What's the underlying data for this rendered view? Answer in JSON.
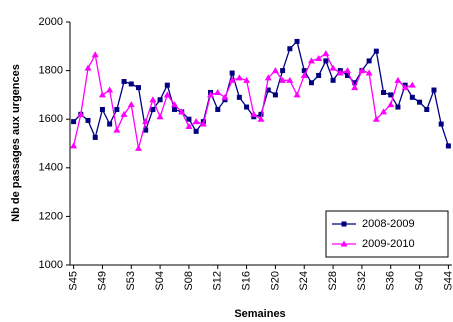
{
  "chart_data": {
    "type": "line",
    "ylabel": "Nb de passages aux urgences",
    "xlabel": "Semaines",
    "categories": [
      "S45",
      null,
      null,
      null,
      "S49",
      null,
      null,
      null,
      "S53",
      null,
      null,
      null,
      "S04",
      null,
      null,
      null,
      "S08",
      null,
      null,
      null,
      "S12",
      null,
      null,
      null,
      "S16",
      null,
      null,
      null,
      "S20",
      null,
      null,
      null,
      "S24",
      null,
      null,
      null,
      "S28",
      null,
      null,
      null,
      "S32",
      null,
      null,
      null,
      "S36",
      null,
      null,
      null,
      "S40",
      null,
      null,
      null,
      "S44"
    ],
    "series": [
      {
        "name": "2008-2009",
        "color": "#000080",
        "marker": "square",
        "values": [
          1590,
          1620,
          1595,
          1525,
          1640,
          1580,
          1640,
          1755,
          1745,
          1730,
          1555,
          1640,
          1680,
          1740,
          1640,
          1630,
          1600,
          1550,
          1590,
          1710,
          1640,
          1680,
          1790,
          1690,
          1650,
          1610,
          1620,
          1720,
          1700,
          1800,
          1890,
          1920,
          1800,
          1750,
          1780,
          1840,
          1760,
          1800,
          1780,
          1750,
          1800,
          1840,
          1880,
          1710,
          1700,
          1650,
          1740,
          1690,
          1670,
          1640,
          1720,
          1580,
          1490
        ]
      },
      {
        "name": "2009-2010",
        "color": "#ff00ff",
        "marker": "triangle",
        "values": [
          1490,
          1620,
          1810,
          1865,
          1700,
          1720,
          1555,
          1620,
          1660,
          1480,
          1590,
          1680,
          1610,
          1700,
          1660,
          1630,
          1570,
          1590,
          1580,
          1700,
          1710,
          1690,
          1760,
          1770,
          1760,
          1620,
          1600,
          1770,
          1800,
          1760,
          1760,
          1700,
          1780,
          1840,
          1850,
          1870,
          1810,
          1790,
          1800,
          1730,
          1800,
          1790,
          1600,
          1630,
          1660,
          1760,
          1730,
          1740,
          null,
          null,
          null,
          null,
          null
        ]
      }
    ],
    "ylim": [
      1000,
      2000
    ],
    "yticks": [
      1000,
      1200,
      1400,
      1600,
      1800,
      2000
    ],
    "legend": "lower right"
  }
}
